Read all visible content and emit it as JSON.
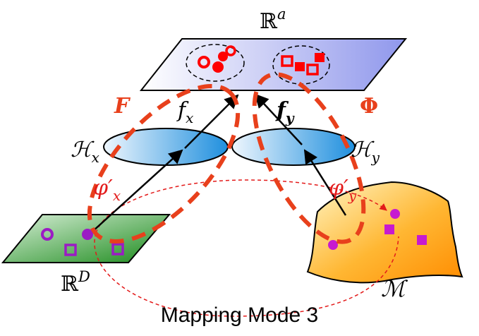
{
  "diagram": {
    "caption": "Mapping Mode 3",
    "spaces": {
      "latent": "ℝ",
      "latent_sup": "a",
      "input_x": "ℝ",
      "input_x_sup": "D",
      "manifold": "ℳ",
      "hilbert_x": "ℋ",
      "hilbert_x_sub": "x",
      "hilbert_y": "ℋ",
      "hilbert_y_sub": "y"
    },
    "maps": {
      "big_x": "F",
      "big_y": "Φ",
      "f_x": "f",
      "f_x_sub": "x",
      "f_y": "f",
      "f_y_sub": "y",
      "phi_x": "φ′",
      "phi_x_sub": "x",
      "phi_y": "φ′",
      "phi_y_sub": "y"
    },
    "colors": {
      "accent_red": "#e8401c",
      "marker_red": "#ff0000",
      "marker_purple": "#9b1bc4",
      "manifold_purple": "#c71ad0"
    }
  }
}
